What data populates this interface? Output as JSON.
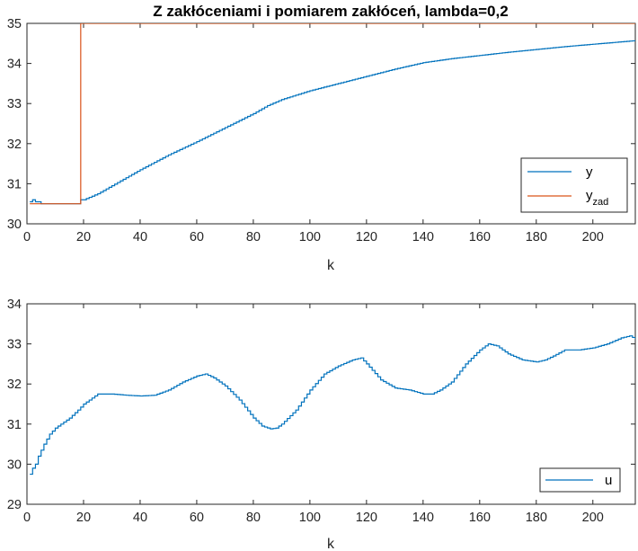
{
  "chart_data": [
    {
      "type": "line",
      "title": "Z zakłóceniami i pomiarem zakłóceń, lambda=0,2",
      "xlabel": "k",
      "ylabel": "",
      "xlim": [
        0,
        215
      ],
      "ylim": [
        30,
        35
      ],
      "xticks": [
        "0",
        "20",
        "40",
        "60",
        "80",
        "100",
        "120",
        "140",
        "160",
        "180",
        "200"
      ],
      "yticks": [
        "30",
        "31",
        "32",
        "33",
        "34",
        "35"
      ],
      "legend_position": "bottom-right",
      "grid": false,
      "series": [
        {
          "name": "y",
          "color": "#0072BD",
          "x": [
            1,
            2,
            3,
            4,
            5,
            6,
            18,
            19,
            20,
            25,
            30,
            40,
            50,
            60,
            70,
            80,
            85,
            90,
            100,
            110,
            120,
            130,
            140,
            150,
            160,
            170,
            180,
            190,
            200,
            210,
            215
          ],
          "y": [
            30.55,
            30.6,
            30.55,
            30.55,
            30.5,
            30.5,
            30.5,
            30.6,
            30.6,
            30.75,
            30.95,
            31.35,
            31.72,
            32.05,
            32.4,
            32.75,
            32.95,
            33.1,
            33.32,
            33.5,
            33.68,
            33.86,
            34.02,
            34.12,
            34.2,
            34.28,
            34.35,
            34.42,
            34.48,
            34.54,
            34.57
          ]
        },
        {
          "name": "y_zad",
          "color": "#D95319",
          "x": [
            1,
            19,
            19,
            215
          ],
          "y": [
            30.5,
            30.5,
            35,
            35
          ]
        }
      ],
      "legend": {
        "y": "y",
        "y_zad_main": "y",
        "y_zad_sub": "zad"
      }
    },
    {
      "type": "line",
      "title": "",
      "xlabel": "k",
      "ylabel": "",
      "xlim": [
        0,
        215
      ],
      "ylim": [
        29,
        34
      ],
      "xticks": [
        "0",
        "20",
        "40",
        "60",
        "80",
        "100",
        "120",
        "140",
        "160",
        "180",
        "200"
      ],
      "yticks": [
        "29",
        "30",
        "31",
        "32",
        "33",
        "34"
      ],
      "legend_position": "bottom-right",
      "grid": false,
      "series": [
        {
          "name": "u",
          "color": "#0072BD",
          "x": [
            1,
            2,
            3,
            4,
            5,
            6,
            8,
            10,
            12,
            15,
            18,
            20,
            22,
            25,
            30,
            35,
            40,
            45,
            50,
            55,
            60,
            63,
            66,
            70,
            75,
            80,
            83,
            86,
            88,
            90,
            95,
            100,
            105,
            110,
            115,
            118,
            120,
            125,
            130,
            135,
            140,
            143,
            146,
            150,
            155,
            160,
            163,
            166,
            170,
            175,
            180,
            183,
            186,
            190,
            195,
            200,
            205,
            210,
            213,
            215
          ],
          "y": [
            29.75,
            29.9,
            30.0,
            30.2,
            30.35,
            30.5,
            30.75,
            30.9,
            31.0,
            31.15,
            31.35,
            31.5,
            31.6,
            31.75,
            31.75,
            31.72,
            31.7,
            31.72,
            31.85,
            32.05,
            32.2,
            32.25,
            32.15,
            31.95,
            31.6,
            31.15,
            30.95,
            30.88,
            30.9,
            31.0,
            31.35,
            31.85,
            32.25,
            32.45,
            32.6,
            32.65,
            32.5,
            32.1,
            31.9,
            31.85,
            31.75,
            31.75,
            31.85,
            32.05,
            32.5,
            32.85,
            33.0,
            32.95,
            32.75,
            32.6,
            32.55,
            32.6,
            32.7,
            32.85,
            32.85,
            32.9,
            33.0,
            33.15,
            33.2,
            33.12
          ]
        }
      ],
      "legend": {
        "u": "u"
      }
    }
  ]
}
